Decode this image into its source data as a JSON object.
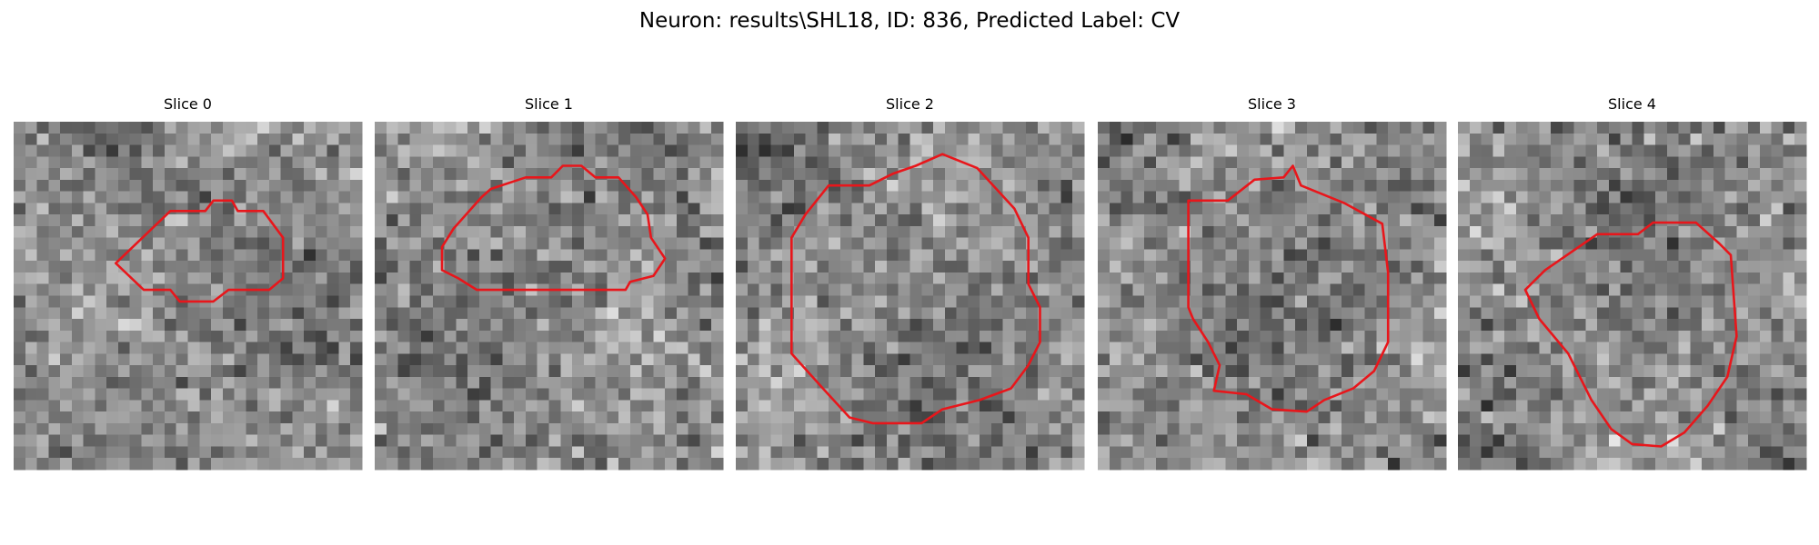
{
  "header": {
    "title": "Neuron: results\\SHL18, ID: 836, Predicted Label: CV"
  },
  "panels": [
    {
      "title": "Slice 0"
    },
    {
      "title": "Slice 1"
    },
    {
      "title": "Slice 2"
    },
    {
      "title": "Slice 3"
    },
    {
      "title": "Slice 4"
    }
  ]
}
